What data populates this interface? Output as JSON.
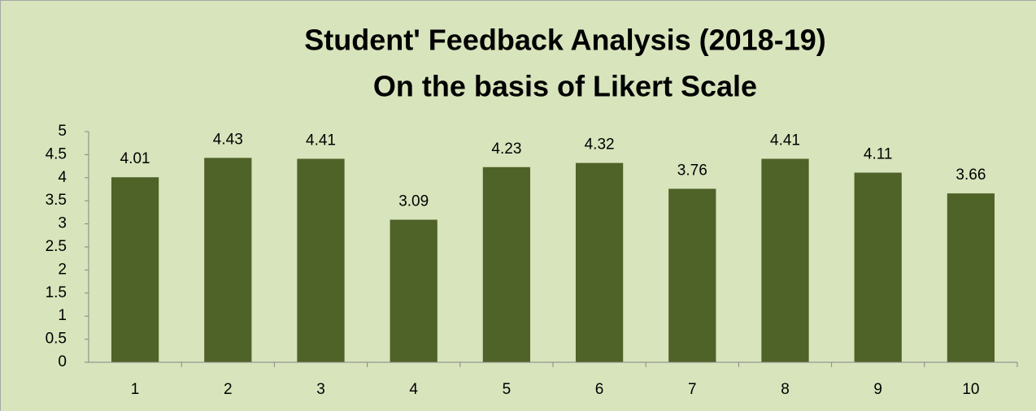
{
  "chart_data": {
    "type": "bar",
    "title": "Student' Feedback Analysis (2018-19)",
    "subtitle": "On the basis of Likert Scale",
    "categories": [
      "1",
      "2",
      "3",
      "4",
      "5",
      "6",
      "7",
      "8",
      "9",
      "10"
    ],
    "values": [
      4.01,
      4.43,
      4.41,
      3.09,
      4.23,
      4.32,
      3.76,
      4.41,
      4.11,
      3.66
    ],
    "color": "#4f6228",
    "ylim": [
      0,
      5
    ],
    "yticks": [
      0,
      0.5,
      1,
      1.5,
      2,
      2.5,
      3,
      3.5,
      4,
      4.5,
      5
    ],
    "grid": false
  }
}
